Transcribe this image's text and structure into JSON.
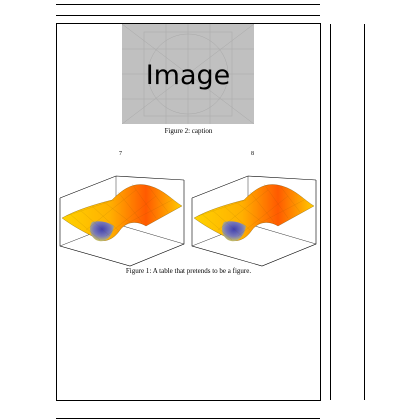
{
  "placeholder": {
    "label": "Image"
  },
  "figure2": {
    "caption": "Figure 2: caption"
  },
  "subfigures": [
    {
      "number": "7"
    },
    {
      "number": "8"
    }
  ],
  "figure1": {
    "caption": "Figure 1: A table that pretends to be a figure."
  },
  "colors": {
    "rule": "#000000",
    "placeholder_bg": "#c0c0c0",
    "surface_high": "#ff2a00",
    "surface_mid": "#ffd200",
    "surface_low": "#5a5ad2"
  },
  "icons": {
    "placeholder": "image-placeholder-icon",
    "surface": "surface-plot-icon"
  }
}
